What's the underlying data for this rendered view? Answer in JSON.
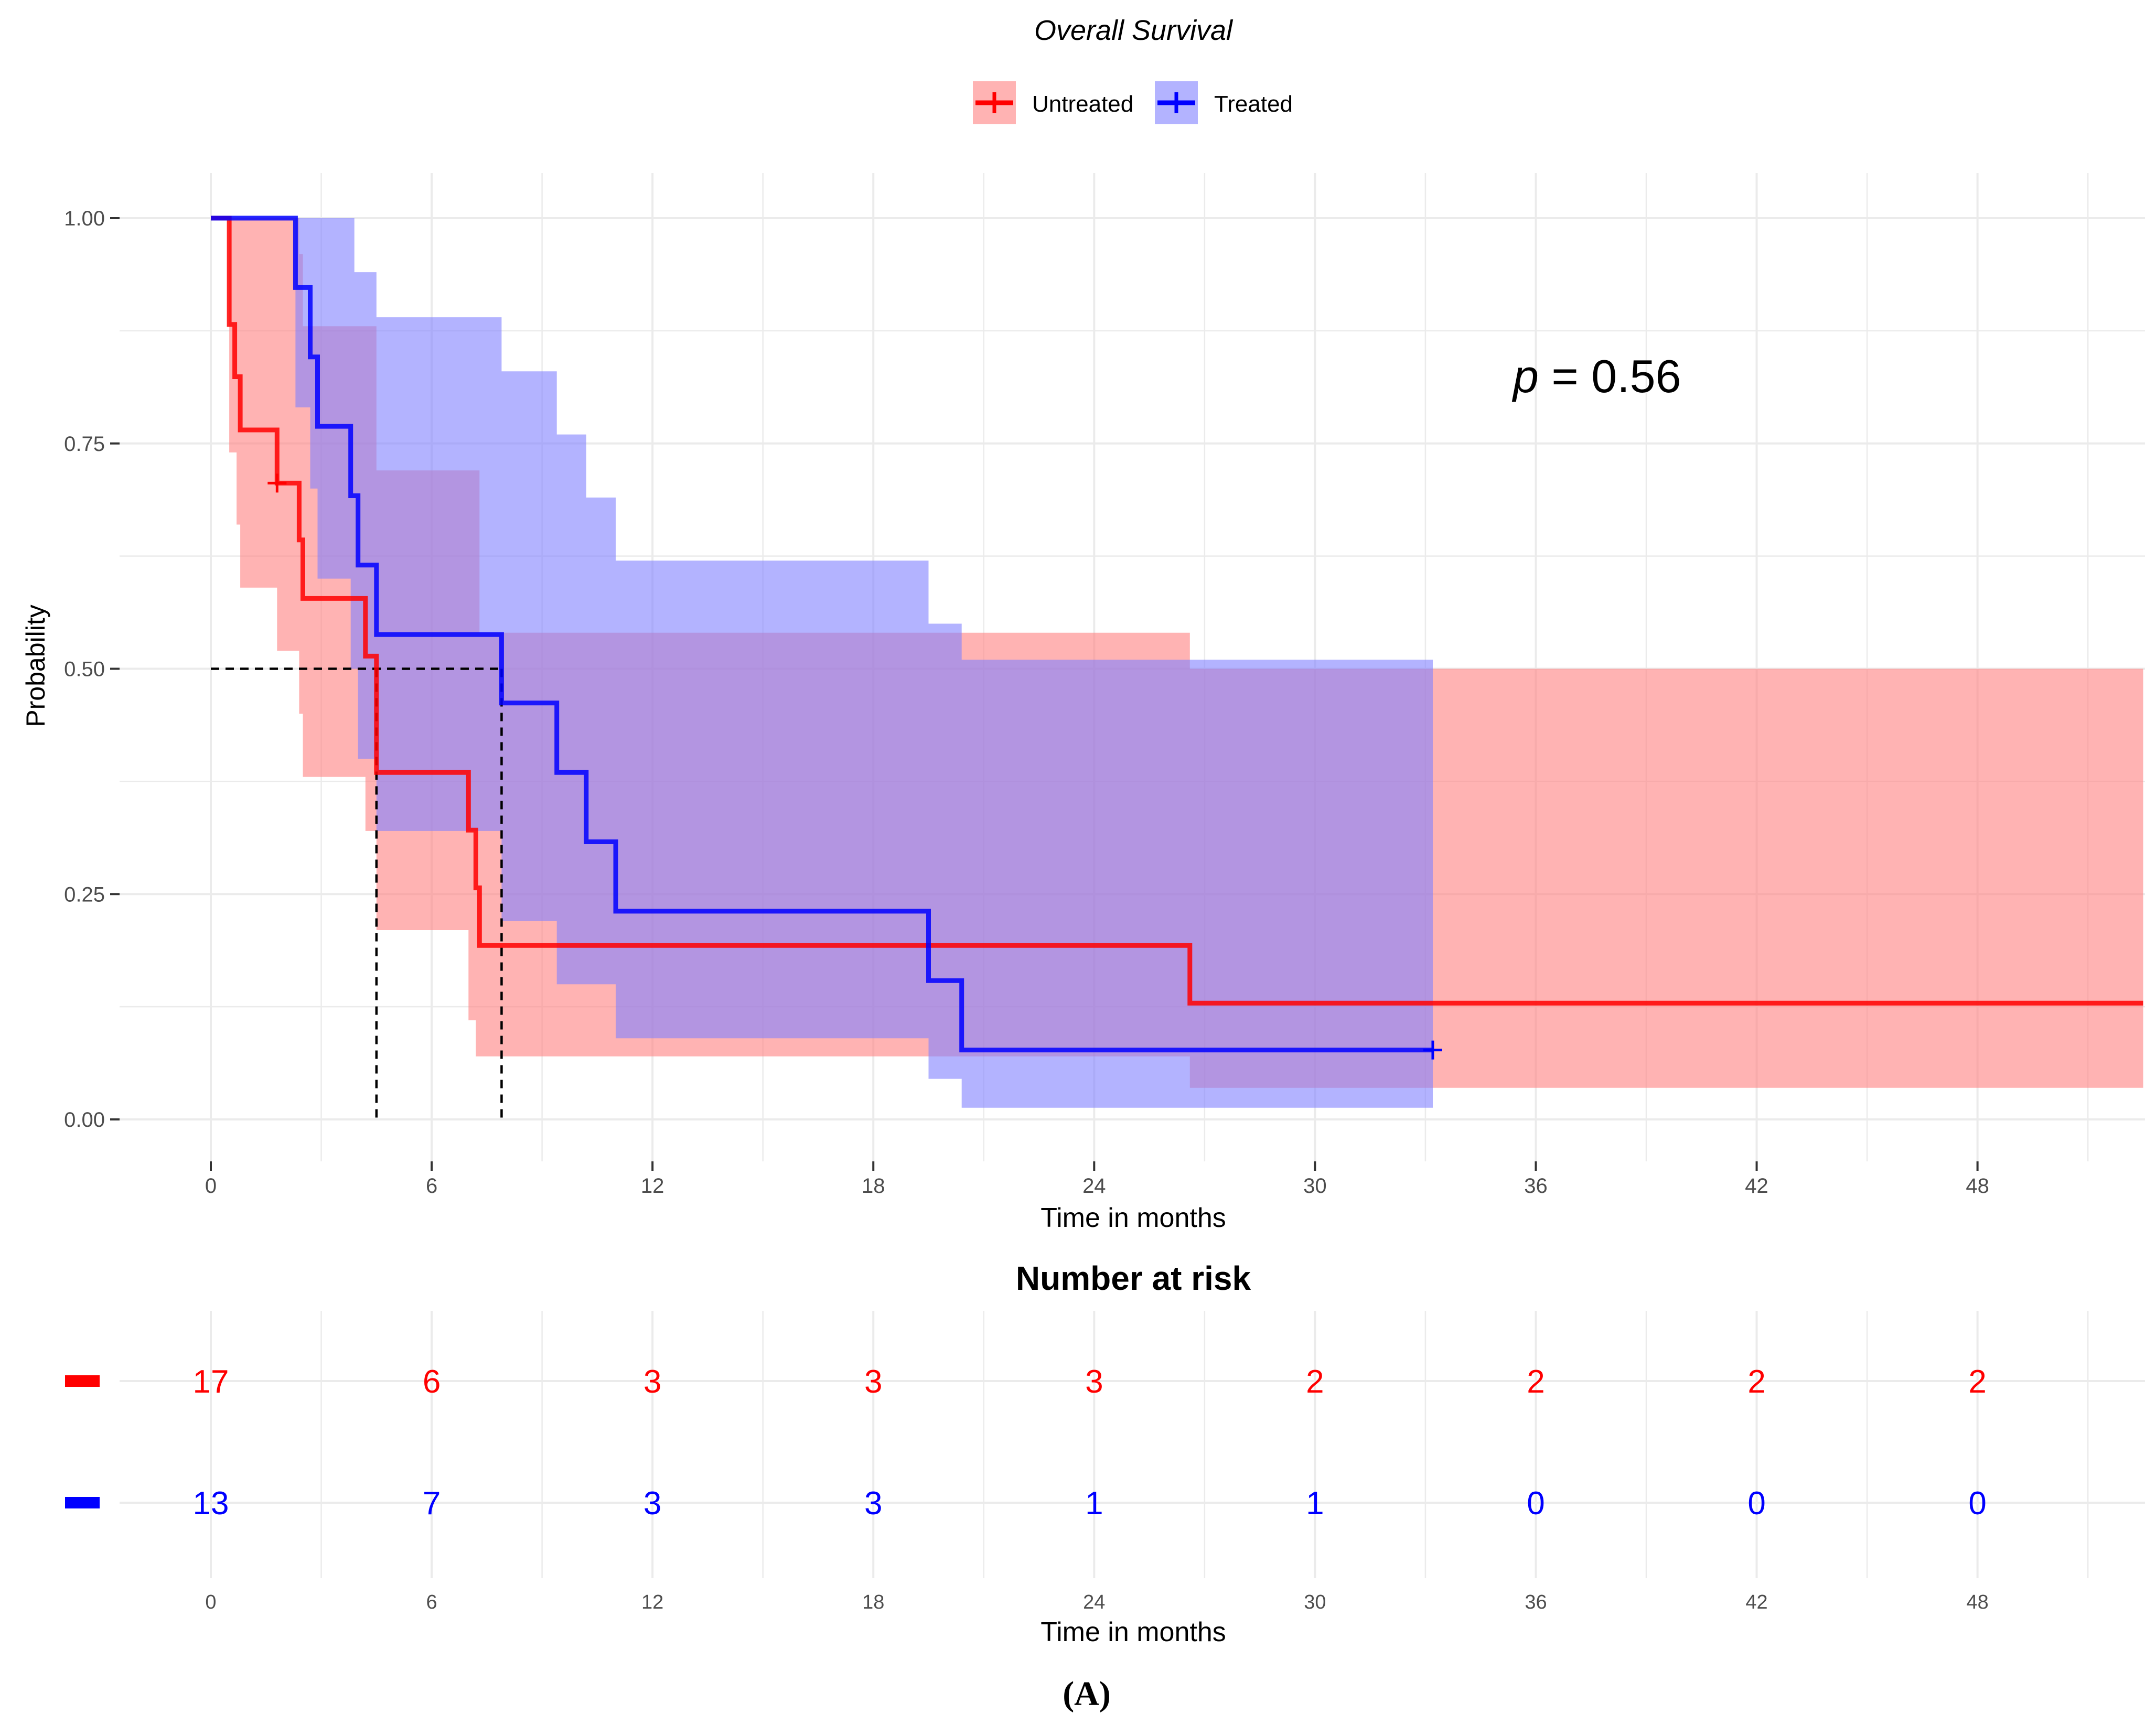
{
  "chart_data": {
    "type": "kaplan-meier",
    "title": "Overall Survival",
    "xlabel": "Time in months",
    "ylabel": "Probability",
    "xlim": [
      0,
      52.5
    ],
    "ylim": [
      0,
      1
    ],
    "x_ticks": [
      0,
      6,
      12,
      18,
      24,
      30,
      36,
      42,
      48
    ],
    "y_ticks": [
      0,
      0.25,
      0.5,
      0.75,
      1
    ],
    "y_tick_labels": [
      "0.00",
      "0.25",
      "0.50",
      "0.75",
      "1.00"
    ],
    "grid": true,
    "legend_position": "top",
    "annotation": "0.56",
    "annotation_prefix": "p",
    "annotation_eq": " = ",
    "series": [
      {
        "name": "Untreated",
        "color": "#ff0000",
        "ci_fill": "#ff8080",
        "steps": [
          [
            0,
            1
          ],
          [
            0.5,
            0.882
          ],
          [
            0.65,
            0.824
          ],
          [
            0.8,
            0.765
          ],
          [
            1.8,
            0.706
          ],
          [
            2.4,
            0.643
          ],
          [
            2.5,
            0.578
          ],
          [
            4.2,
            0.514
          ],
          [
            4.5,
            0.385
          ],
          [
            7.0,
            0.321
          ],
          [
            7.2,
            0.257
          ],
          [
            7.3,
            0.193
          ],
          [
            26.6,
            0.129
          ],
          [
            52.5,
            0.129
          ]
        ],
        "censor": [
          [
            1.8,
            0.706
          ]
        ],
        "ci_upper": [
          [
            0,
            1
          ],
          [
            1.8,
            1
          ],
          [
            2.4,
            0.96
          ],
          [
            2.5,
            0.88
          ],
          [
            4.2,
            0.88
          ],
          [
            4.5,
            0.72
          ],
          [
            7.0,
            0.72
          ],
          [
            7.3,
            0.54
          ],
          [
            26.6,
            0.5
          ],
          [
            52.5,
            0.5
          ]
        ],
        "ci_lower": [
          [
            0,
            1
          ],
          [
            0.5,
            0.74
          ],
          [
            0.7,
            0.66
          ],
          [
            0.8,
            0.59
          ],
          [
            1.8,
            0.52
          ],
          [
            2.4,
            0.45
          ],
          [
            2.5,
            0.38
          ],
          [
            4.2,
            0.32
          ],
          [
            4.5,
            0.21
          ],
          [
            7.0,
            0.11
          ],
          [
            7.2,
            0.07
          ],
          [
            26.6,
            0.035
          ],
          [
            52.5,
            0.035
          ]
        ],
        "at_risk": [
          17,
          6,
          3,
          3,
          3,
          2,
          2,
          2,
          2
        ]
      },
      {
        "name": "Treated",
        "color": "#0000ff",
        "ci_fill": "#8080ff",
        "steps": [
          [
            0,
            1
          ],
          [
            2.3,
            0.923
          ],
          [
            2.7,
            0.846
          ],
          [
            2.9,
            0.769
          ],
          [
            3.8,
            0.692
          ],
          [
            4.0,
            0.615
          ],
          [
            4.5,
            0.538
          ],
          [
            7.9,
            0.462
          ],
          [
            9.4,
            0.385
          ],
          [
            10.2,
            0.308
          ],
          [
            11.0,
            0.231
          ],
          [
            19.5,
            0.154
          ],
          [
            20.4,
            0.077
          ],
          [
            33.2,
            0.077
          ]
        ],
        "censor": [
          [
            33.2,
            0.077
          ]
        ],
        "ci_upper": [
          [
            0,
            1
          ],
          [
            3.9,
            0.94
          ],
          [
            4.5,
            0.89
          ],
          [
            7.9,
            0.83
          ],
          [
            9.4,
            0.76
          ],
          [
            10.2,
            0.69
          ],
          [
            11.0,
            0.62
          ],
          [
            19.5,
            0.55
          ],
          [
            20.4,
            0.51
          ],
          [
            33.2,
            0.51
          ]
        ],
        "ci_lower": [
          [
            0,
            1
          ],
          [
            2.3,
            0.79
          ],
          [
            2.7,
            0.7
          ],
          [
            2.9,
            0.6
          ],
          [
            3.8,
            0.5
          ],
          [
            4.0,
            0.4
          ],
          [
            4.5,
            0.32
          ],
          [
            7.9,
            0.22
          ],
          [
            9.4,
            0.15
          ],
          [
            11.0,
            0.09
          ],
          [
            19.5,
            0.045
          ],
          [
            20.4,
            0.013
          ],
          [
            33.2,
            0.013
          ]
        ],
        "at_risk": [
          13,
          7,
          3,
          3,
          1,
          1,
          0,
          0,
          0
        ]
      }
    ],
    "medians": [
      4.5,
      7.9
    ],
    "risk_table": {
      "title": "Number at risk",
      "xlabel": "Time in months",
      "x_ticks": [
        0,
        6,
        12,
        18,
        24,
        30,
        36,
        42,
        48
      ]
    }
  },
  "caption": "(A)"
}
